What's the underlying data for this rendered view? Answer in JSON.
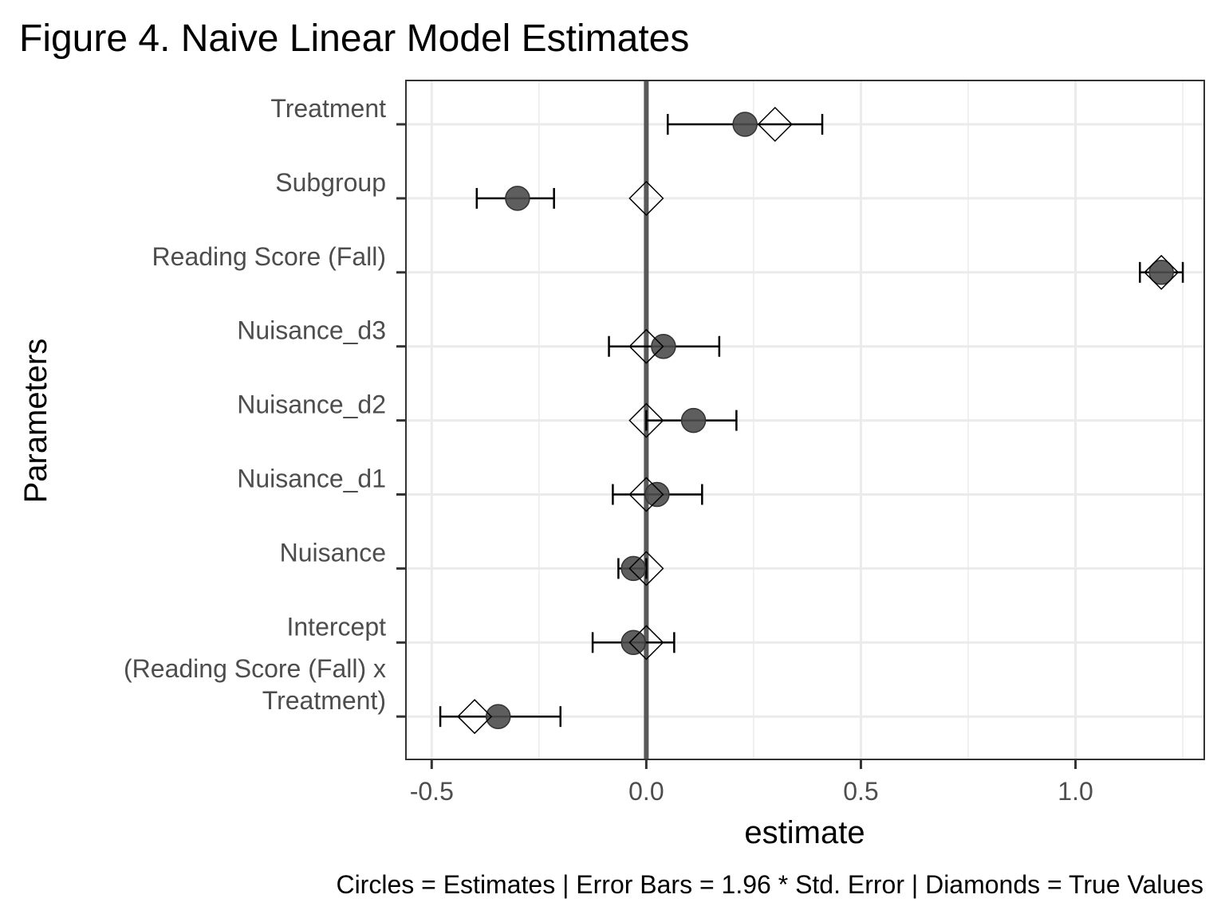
{
  "chart_data": {
    "type": "scatter",
    "title": "Figure 4. Naive Linear Model Estimates",
    "xlabel": "estimate",
    "ylabel": "Parameters",
    "caption": "Circles = Estimates | Error Bars = 1.96 * Std. Error | Diamonds  = True Values",
    "xlim": [
      -0.56,
      1.3
    ],
    "xticks": [
      "-0.5",
      "0.0",
      "0.5",
      "1.0"
    ],
    "xtick_values": [
      -0.5,
      0.0,
      0.5,
      1.0
    ],
    "reference_line": 0.0,
    "grid": true,
    "categories": [
      "Treatment",
      "Subgroup",
      "Reading Score (Fall)",
      "Nuisance_d3",
      "Nuisance_d2",
      "Nuisance_d1",
      "Nuisance",
      "Intercept",
      "(Reading Score (Fall) x Treatment)"
    ],
    "category_lines": [
      [
        "Treatment"
      ],
      [
        "Subgroup"
      ],
      [
        "Reading Score (Fall)"
      ],
      [
        "Nuisance_d3"
      ],
      [
        "Nuisance_d2"
      ],
      [
        "Nuisance_d1"
      ],
      [
        "Nuisance"
      ],
      [
        "Intercept"
      ],
      [
        "(Reading Score (Fall) x",
        "Treatment)"
      ]
    ],
    "series": [
      {
        "name": "Estimates",
        "values": [
          0.23,
          -0.3,
          1.2,
          0.04,
          0.11,
          0.025,
          -0.03,
          -0.03,
          -0.345
        ]
      },
      {
        "name": "Error Bars",
        "lower": [
          0.05,
          -0.395,
          1.15,
          -0.087,
          0.0,
          -0.078,
          -0.065,
          -0.125,
          -0.48
        ],
        "upper": [
          0.41,
          -0.215,
          1.25,
          0.17,
          0.21,
          0.13,
          0.0,
          0.065,
          -0.2
        ]
      },
      {
        "name": "True Values",
        "values": [
          0.3,
          0.0,
          1.2,
          0.0,
          0.0,
          0.0,
          0.0,
          0.0,
          -0.4
        ]
      }
    ],
    "colors": {
      "point_fill": "#4d4d4d",
      "grid": "#ebebeb",
      "reference_line": "#595959",
      "border": "#333333"
    }
  }
}
